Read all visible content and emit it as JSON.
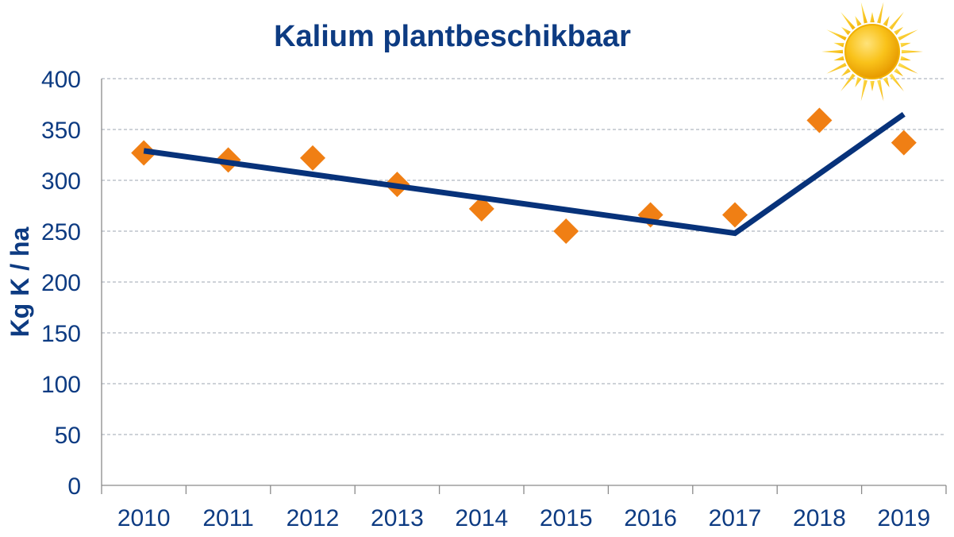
{
  "chart_data": {
    "type": "scatter",
    "title": "Kalium plantbeschikbaar",
    "ylabel": "Kg K / ha",
    "xlabel": "",
    "categories": [
      "2010",
      "2011",
      "2012",
      "2013",
      "2014",
      "2015",
      "2016",
      "2017",
      "2018",
      "2019"
    ],
    "yticks": [
      0,
      50,
      100,
      150,
      200,
      250,
      300,
      350,
      400
    ],
    "ylim": [
      0,
      400
    ],
    "grid": true,
    "series": [
      {
        "values": [
          327,
          320,
          322,
          296,
          272,
          250,
          266,
          266,
          359,
          337
        ],
        "marker": "diamond",
        "color": "#F07F14"
      }
    ],
    "trend_line": {
      "points": [
        {
          "x": "2010",
          "y": 329
        },
        {
          "x": "2017",
          "y": 248
        },
        {
          "x": "2019",
          "y": 365
        }
      ],
      "color": "#07327A"
    },
    "decorations": {
      "sun_icon": "sun-icon"
    }
  },
  "colors": {
    "text": "#0D3B82",
    "marker": "#F07F14",
    "line": "#07327A"
  }
}
